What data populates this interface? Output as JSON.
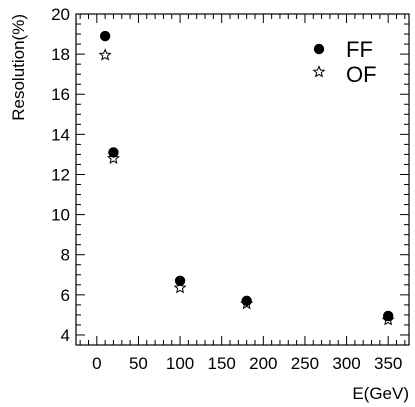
{
  "chart_data": {
    "type": "scatter",
    "title": "",
    "xlabel": "E(GeV)",
    "ylabel": "Resolution(%)",
    "xlim": [
      -25,
      375
    ],
    "ylim": [
      3.5,
      20
    ],
    "x_ticks": [
      0,
      50,
      100,
      150,
      200,
      250,
      300,
      350
    ],
    "y_ticks": [
      4,
      6,
      8,
      10,
      12,
      14,
      16,
      18,
      20
    ],
    "x_tick_labels": [
      "0",
      "50",
      "100",
      "150",
      "200",
      "250",
      "300",
      "350"
    ],
    "y_tick_labels": [
      "4",
      "6",
      "8",
      "10",
      "12",
      "14",
      "16",
      "18",
      "20"
    ],
    "grid": false,
    "legend_position": "top-right",
    "series": [
      {
        "name": "FF",
        "marker": "filled-circle",
        "color": "#000000",
        "points": [
          {
            "x": 10,
            "y": 18.9
          },
          {
            "x": 20,
            "y": 13.1
          },
          {
            "x": 100,
            "y": 6.7
          },
          {
            "x": 180,
            "y": 5.7
          },
          {
            "x": 350,
            "y": 4.95
          }
        ]
      },
      {
        "name": "OF",
        "marker": "open-star",
        "color": "#000000",
        "points": [
          {
            "x": 10,
            "y": 17.95
          },
          {
            "x": 20,
            "y": 12.8
          },
          {
            "x": 100,
            "y": 6.35
          },
          {
            "x": 180,
            "y": 5.55
          },
          {
            "x": 350,
            "y": 4.75
          }
        ]
      }
    ]
  }
}
